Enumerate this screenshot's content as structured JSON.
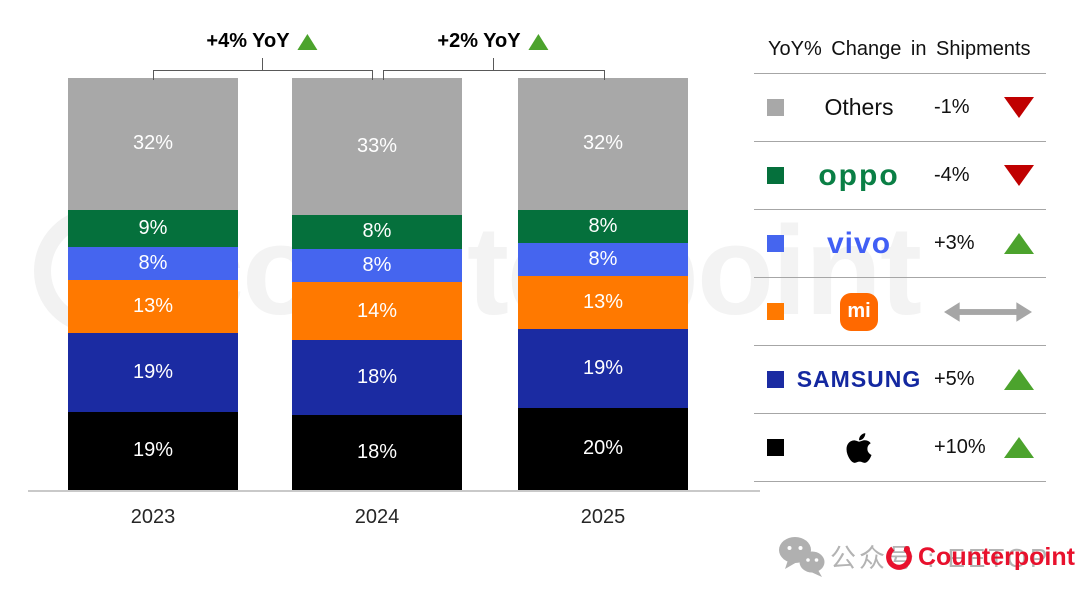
{
  "chart_data": {
    "type": "bar",
    "stacked": true,
    "unit": "%",
    "categories": [
      "2023",
      "2024",
      "2025"
    ],
    "series": [
      {
        "name": "Others",
        "color": "#a8a8a8",
        "values": [
          32,
          33,
          32
        ]
      },
      {
        "name": "OPPO",
        "color": "#05703c",
        "values": [
          9,
          8,
          8
        ]
      },
      {
        "name": "vivo",
        "color": "#4565ef",
        "values": [
          8,
          8,
          8
        ]
      },
      {
        "name": "Xiaomi",
        "color": "#ff7900",
        "values": [
          13,
          14,
          13
        ]
      },
      {
        "name": "Samsung",
        "color": "#1b2ba2",
        "values": [
          19,
          18,
          19
        ]
      },
      {
        "name": "Apple",
        "color": "#000000",
        "values": [
          19,
          18,
          20
        ]
      }
    ],
    "annotations": [
      {
        "label": "+4% YoY",
        "direction": "up",
        "from": "2023",
        "to": "2024"
      },
      {
        "label": "+2% YoY",
        "direction": "up",
        "from": "2024",
        "to": "2025"
      }
    ],
    "legend_position": "right",
    "grid": false
  },
  "legend": {
    "title": "YoY% Change in Shipments",
    "rows": [
      {
        "brand": "Others",
        "logo": "others",
        "swatch": "#a8a8a8",
        "value": "-1%",
        "direction": "down"
      },
      {
        "brand": "oppo",
        "logo": "oppo",
        "swatch": "#05703c",
        "value": "-4%",
        "direction": "down"
      },
      {
        "brand": "vivo",
        "logo": "vivo",
        "swatch": "#4565ef",
        "value": "+3%",
        "direction": "up"
      },
      {
        "brand": "mi",
        "logo": "mi",
        "swatch": "#ff7900",
        "value": "",
        "direction": "flat"
      },
      {
        "brand": "SAMSUNG",
        "logo": "samsung",
        "swatch": "#1b2ba2",
        "value": "+5%",
        "direction": "up"
      },
      {
        "brand": "Apple",
        "logo": "apple",
        "swatch": "#000000",
        "value": "+10%",
        "direction": "up"
      }
    ]
  },
  "footer": {
    "wechat_label": "公众号 : EETOP",
    "brand": "Counterpoint"
  },
  "watermark": "counterpoint",
  "colors": {
    "up": "#4ca32d",
    "down": "#c00000",
    "flat": "#a6a6a6",
    "separator": "#a6a6a6",
    "axis": "#c9c9c9",
    "counterpoint_red": "#e8112d"
  }
}
